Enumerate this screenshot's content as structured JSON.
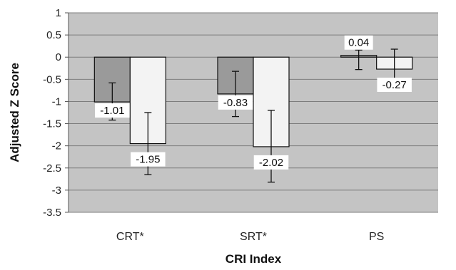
{
  "chart_data": {
    "type": "bar",
    "xlabel": "CRI Index",
    "ylabel": "Adjusted Z Score",
    "ylim": [
      -3.5,
      1
    ],
    "yticks": [
      1,
      0.5,
      0,
      -0.5,
      -1,
      -1.5,
      -2,
      -2.5,
      -3,
      -3.5
    ],
    "ytick_labels": [
      "1",
      "0.5",
      "0",
      "-0.5",
      "-1",
      "-1.5",
      "-2",
      "-2.5",
      "-3",
      "-3.5"
    ],
    "grid": true,
    "legend": "none",
    "categories": [
      "CRT*",
      "SRT*",
      "PS"
    ],
    "series": [
      {
        "color": "#9a9a9a",
        "values": [
          -1.01,
          -0.83,
          0.04
        ],
        "labels": [
          "-1.01",
          "-0.83",
          "0.04"
        ],
        "err_low": [
          -1.42,
          -1.34,
          -0.28
        ],
        "err_high": [
          -0.58,
          -0.32,
          0.16
        ]
      },
      {
        "color": "#f3f3f3",
        "values": [
          -1.95,
          -2.02,
          -0.27
        ],
        "labels": [
          "-1.95",
          "-2.02",
          "-0.27"
        ],
        "err_low": [
          -2.65,
          -2.82,
          -0.62
        ],
        "err_high": [
          -1.25,
          -1.2,
          0.18
        ]
      }
    ],
    "plot_background": "#c4c4c4"
  }
}
